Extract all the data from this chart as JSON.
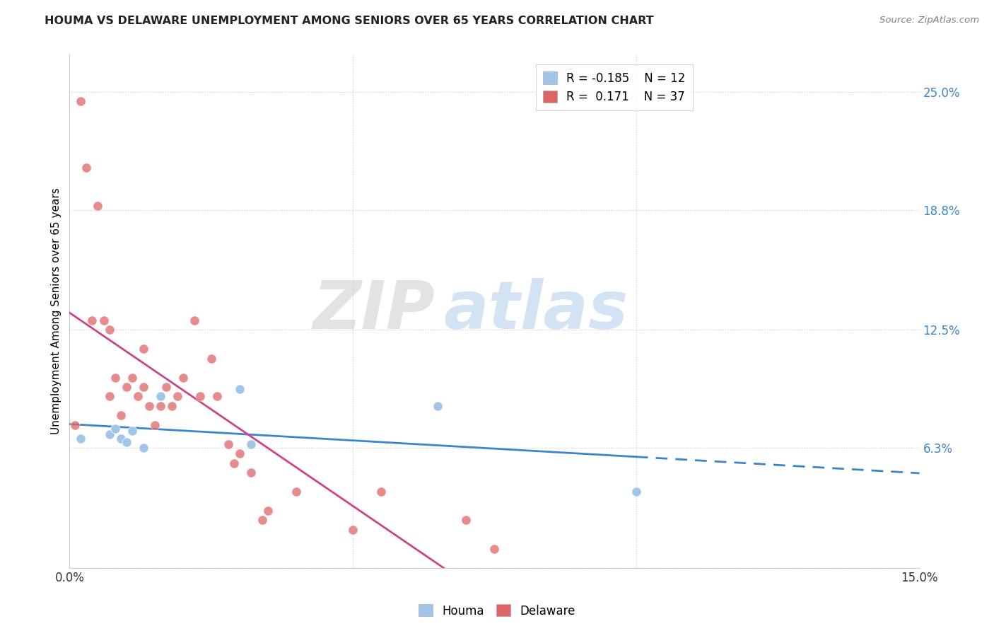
{
  "title": "HOUMA VS DELAWARE UNEMPLOYMENT AMONG SENIORS OVER 65 YEARS CORRELATION CHART",
  "source": "Source: ZipAtlas.com",
  "ylabel": "Unemployment Among Seniors over 65 years",
  "xlim": [
    0.0,
    0.15
  ],
  "ylim": [
    0.0,
    0.27
  ],
  "xticklabels": [
    "0.0%",
    "15.0%"
  ],
  "yticks_right": [
    0.0,
    0.063,
    0.125,
    0.188,
    0.25
  ],
  "yticklabels_right": [
    "",
    "6.3%",
    "12.5%",
    "18.8%",
    "25.0%"
  ],
  "houma_color": "#9fc5e8",
  "delaware_color": "#e06666",
  "houma_line_color": "#3d85c8",
  "delaware_line_color": "#cc4488",
  "legend_R_houma": "-0.185",
  "legend_N_houma": "12",
  "legend_R_delaware": " 0.171",
  "legend_N_delaware": "37",
  "watermark_zip": "ZIP",
  "watermark_atlas": "atlas",
  "houma_x": [
    0.002,
    0.007,
    0.008,
    0.009,
    0.01,
    0.011,
    0.013,
    0.016,
    0.03,
    0.032,
    0.065,
    0.1
  ],
  "houma_y": [
    0.068,
    0.07,
    0.073,
    0.068,
    0.066,
    0.072,
    0.063,
    0.09,
    0.094,
    0.065,
    0.085,
    0.04
  ],
  "delaware_x": [
    0.001,
    0.002,
    0.003,
    0.004,
    0.005,
    0.006,
    0.007,
    0.007,
    0.008,
    0.009,
    0.01,
    0.011,
    0.012,
    0.013,
    0.013,
    0.014,
    0.015,
    0.016,
    0.017,
    0.018,
    0.019,
    0.02,
    0.022,
    0.023,
    0.025,
    0.026,
    0.028,
    0.029,
    0.03,
    0.032,
    0.034,
    0.035,
    0.04,
    0.05,
    0.055,
    0.07,
    0.075
  ],
  "delaware_y": [
    0.075,
    0.245,
    0.21,
    0.13,
    0.19,
    0.13,
    0.125,
    0.09,
    0.1,
    0.08,
    0.095,
    0.1,
    0.09,
    0.095,
    0.115,
    0.085,
    0.075,
    0.085,
    0.095,
    0.085,
    0.09,
    0.1,
    0.13,
    0.09,
    0.11,
    0.09,
    0.065,
    0.055,
    0.06,
    0.05,
    0.025,
    0.03,
    0.04,
    0.02,
    0.04,
    0.025,
    0.01
  ]
}
